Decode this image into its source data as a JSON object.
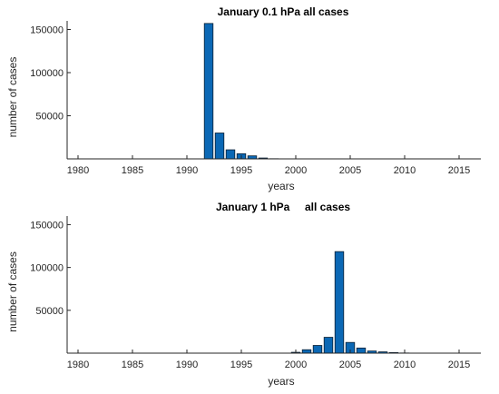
{
  "chart_data": [
    {
      "type": "bar",
      "title": "January 0.1 hPa all cases",
      "xlabel": "years",
      "ylabel": "number of cases",
      "xlim": [
        1979,
        2017
      ],
      "ylim": [
        0,
        160000
      ],
      "xticks": [
        1980,
        1985,
        1990,
        1995,
        2000,
        2005,
        2010,
        2015
      ],
      "yticks": [
        50000,
        100000,
        150000
      ],
      "xtick_labels": [
        "1980",
        "1985",
        "1990",
        "1995",
        "2000",
        "2005",
        "2010",
        "2015"
      ],
      "ytick_labels": [
        "50000",
        "100000",
        "150000"
      ],
      "x": [
        1992,
        1993,
        1994,
        1995,
        1996,
        1997,
        1998
      ],
      "values": [
        157000,
        30000,
        10500,
        6000,
        3500,
        1000,
        200
      ],
      "bar_color": "#0b68b5",
      "grid": false
    },
    {
      "type": "bar",
      "title": "January 1 hPa     all cases",
      "xlabel": "years",
      "ylabel": "number of cases",
      "xlim": [
        1979,
        2017
      ],
      "ylim": [
        0,
        160000
      ],
      "xticks": [
        1980,
        1985,
        1990,
        1995,
        2000,
        2005,
        2010,
        2015
      ],
      "yticks": [
        50000,
        100000,
        150000
      ],
      "xtick_labels": [
        "1980",
        "1985",
        "1990",
        "1995",
        "2000",
        "2005",
        "2010",
        "2015"
      ],
      "ytick_labels": [
        "50000",
        "100000",
        "150000"
      ],
      "x": [
        2000,
        2001,
        2002,
        2003,
        2004,
        2005,
        2006,
        2007,
        2008,
        2009,
        2010
      ],
      "values": [
        1000,
        4000,
        9000,
        18500,
        118500,
        12500,
        6000,
        2500,
        1500,
        700,
        200
      ],
      "bar_color": "#0b68b5",
      "grid": false
    }
  ]
}
